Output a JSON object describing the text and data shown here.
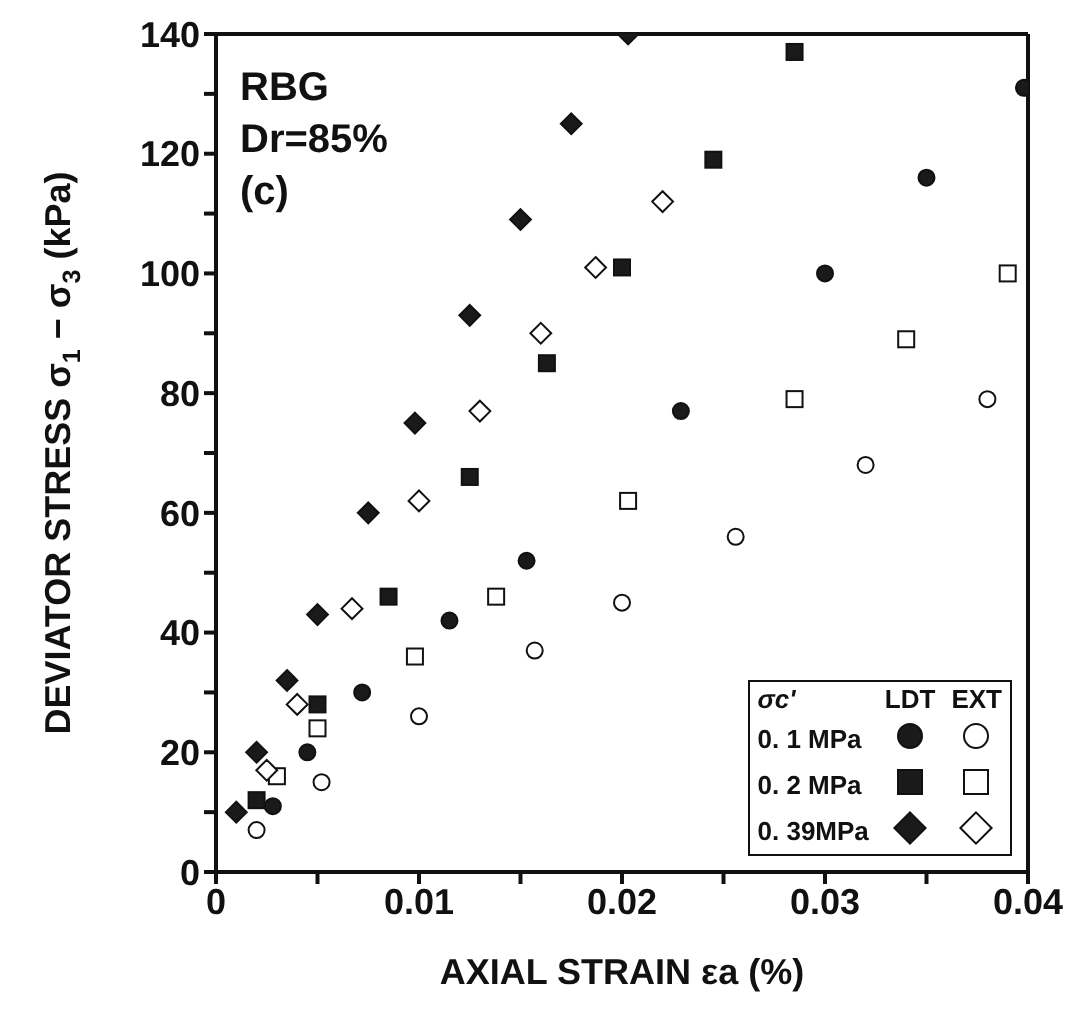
{
  "chart_data": {
    "type": "scatter",
    "xlabel": "AXIAL STRAIN  εa  (%)",
    "ylabel": "DEVIATOR STRESS  σ$_{1}$ − σ$_{3}$  (kPa)",
    "legend_title": "σc'",
    "annotations": [
      "RBG",
      "Dr=85%",
      "(c)",
      "LDT",
      "EXT"
    ],
    "xlim": [
      0,
      0.04
    ],
    "xticks": [
      0,
      {
        "value": 0.005,
        "label": null
      },
      0.01,
      {
        "value": 0.015,
        "label": null
      },
      0.02,
      {
        "value": 0.025,
        "label": null
      },
      0.03,
      {
        "value": 0.035,
        "label": null
      },
      0.04
    ],
    "ylim": [
      0,
      140
    ],
    "yticks": [
      0,
      {
        "value": 10,
        "label": null
      },
      20,
      {
        "value": 30,
        "label": null
      },
      40,
      {
        "value": 50,
        "label": null
      },
      60,
      {
        "value": 70,
        "label": null
      },
      80,
      {
        "value": 90,
        "label": null
      },
      100,
      {
        "value": 110,
        "label": null
      },
      120,
      {
        "value": 130,
        "label": null
      },
      140
    ],
    "legend": "bottom right",
    "series": [
      {
        "name": "0. 1 MPa",
        "marker": "circle",
        "color": "#1a1a1a",
        "x": [
          0.0028,
          0.0045,
          0.0072,
          0.0115,
          0.0153,
          0.0229,
          0.03,
          0.035,
          0.0398
        ],
        "values": [
          11,
          20,
          30,
          42,
          52,
          77,
          100,
          116,
          131
        ]
      },
      {
        "name": "0. 2 MPa",
        "marker": "square",
        "color": "#1a1a1a",
        "x": [
          0.002,
          0.005,
          0.0085,
          0.0125,
          0.0163,
          0.02,
          0.0245,
          0.0285
        ],
        "values": [
          12,
          28,
          46,
          66,
          85,
          101,
          119,
          137
        ]
      },
      {
        "name": "0. 39MPa",
        "marker": "diamond",
        "color": "#1a1a1a",
        "x": [
          0.001,
          0.002,
          0.0035,
          0.005,
          0.0075,
          0.0098,
          0.0125,
          0.015,
          0.0175,
          0.0203
        ],
        "values": [
          10,
          20,
          32,
          43,
          60,
          75,
          93,
          109,
          125,
          140
        ]
      },
      {
        "marker": "circle",
        "color": "#ffffff",
        "x": [
          0.002,
          0.0052,
          0.01,
          0.0157,
          0.02,
          0.0256,
          0.032,
          0.038
        ],
        "values": [
          7,
          15,
          26,
          37,
          45,
          56,
          68,
          79
        ]
      },
      {
        "marker": "square",
        "color": "#ffffff",
        "x": [
          0.003,
          0.005,
          0.0098,
          0.0138,
          0.0203,
          0.0285,
          0.034,
          0.039
        ],
        "values": [
          16,
          24,
          36,
          46,
          62,
          79,
          89,
          100
        ]
      },
      {
        "marker": "diamond",
        "color": "#ffffff",
        "x": [
          0.0025,
          0.004,
          0.0067,
          0.01,
          0.013,
          0.016,
          0.0187,
          0.022
        ],
        "values": [
          17,
          28,
          44,
          62,
          77,
          90,
          101,
          112
        ]
      }
    ]
  }
}
